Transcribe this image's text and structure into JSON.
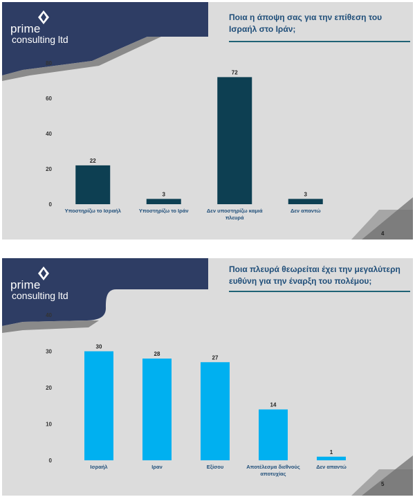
{
  "logo": {
    "line1": "prime",
    "line2": "consulting ltd"
  },
  "slides": [
    {
      "title": "Ποια η άποψη σας για την επίθεση του Ισραήλ στο Ιράν;",
      "page_number": "4",
      "bar_color": "#0d3f52"
    },
    {
      "title": "Ποια πλευρά θεωρείται έχει την μεγαλύτερη ευθύνη για την έναρξη του πολέμου;",
      "page_number": "5",
      "bar_color": "#00b0f0"
    }
  ],
  "chart_data": [
    {
      "type": "bar",
      "title": "",
      "categories": [
        "Υποστηρίζω το Ισραήλ",
        "Υποστηρίζω το Ιράν",
        "Δεν υποστηρίζω καμιά πλευρά",
        "Δεν απαντώ"
      ],
      "values": [
        22,
        3,
        72,
        3
      ],
      "ylim": [
        0,
        80
      ],
      "yticks": [
        0,
        20,
        40,
        60,
        80
      ],
      "grid": false,
      "data_labels": true
    },
    {
      "type": "bar",
      "title": "",
      "categories": [
        "Ισραήλ",
        "Ιραν",
        "Εξίσου",
        "Αποτέλεσμα διεθνούς αποτυχίας",
        "Δεν απαντώ"
      ],
      "values": [
        30,
        28,
        27,
        14,
        1
      ],
      "ylim": [
        0,
        40
      ],
      "yticks": [
        0,
        10,
        20,
        30,
        40
      ],
      "grid": false,
      "data_labels": true
    }
  ]
}
